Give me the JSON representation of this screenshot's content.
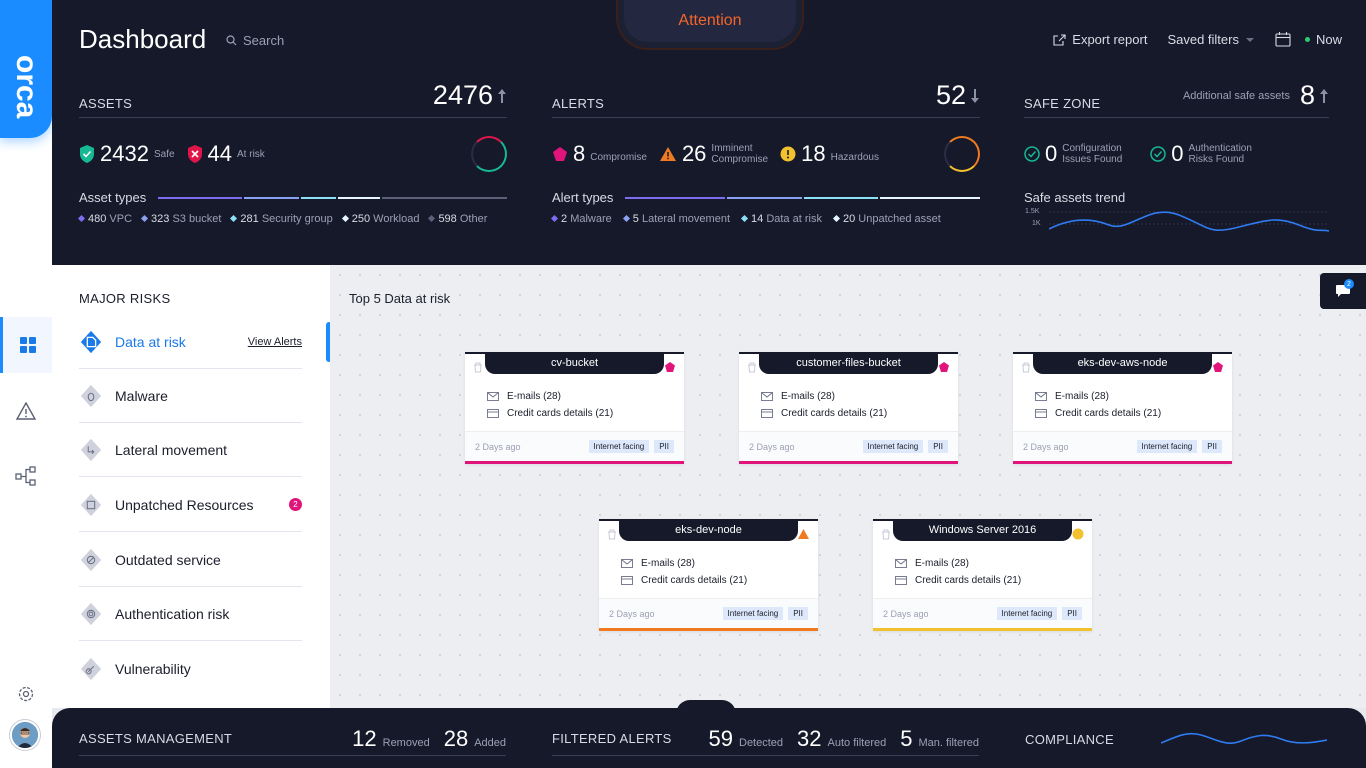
{
  "brand": {
    "logo_text": "orca",
    "accent": "#1a8cff"
  },
  "header": {
    "title": "Dashboard",
    "search_placeholder": "Search",
    "attention": "Attention",
    "export_report": "Export report",
    "saved_filters": "Saved filters",
    "time_label": "Now"
  },
  "assets": {
    "label": "ASSETS",
    "total": "2476",
    "safe_count": "2432",
    "safe_label": "Safe",
    "risk_count": "44",
    "risk_label": "At risk",
    "types_title": "Asset types",
    "types": [
      {
        "count": "480",
        "name": "VPC"
      },
      {
        "count": "323",
        "name": "S3 bucket"
      },
      {
        "count": "281",
        "name": "Security group"
      },
      {
        "count": "250",
        "name": "Workload"
      },
      {
        "count": "598",
        "name": "Other"
      }
    ]
  },
  "alerts": {
    "label": "ALERTS",
    "total": "52",
    "compromise_count": "8",
    "compromise_label": "Compromise",
    "imminent_count": "26",
    "imminent_label_1": "Imminent",
    "imminent_label_2": "Compromise",
    "hazardous_count": "18",
    "hazardous_label": "Hazardous",
    "types_title": "Alert types",
    "types": [
      {
        "count": "2",
        "name": "Malware"
      },
      {
        "count": "5",
        "name": "Lateral movement"
      },
      {
        "count": "14",
        "name": "Data at risk"
      },
      {
        "count": "20",
        "name": "Unpatched asset"
      }
    ]
  },
  "safe_zone": {
    "label": "SAFE ZONE",
    "additional_label": "Additional safe assets",
    "additional_count": "8",
    "config_count": "0",
    "config_label_1": "Configuration",
    "config_label_2": "Issues Found",
    "auth_count": "0",
    "auth_label_1": "Authentication",
    "auth_label_2": "Risks Found",
    "trend_title": "Safe assets trend",
    "trend_y_high": "1.5K",
    "trend_y_low": "1K"
  },
  "risks": {
    "title": "MAJOR RISKS",
    "view_alerts": "View Alerts",
    "items": [
      {
        "label": "Data at risk"
      },
      {
        "label": "Malware"
      },
      {
        "label": "Lateral movement"
      },
      {
        "label": "Unpatched Resources",
        "badge": "2"
      },
      {
        "label": "Outdated service"
      },
      {
        "label": "Authentication risk"
      },
      {
        "label": "Vulnerability"
      }
    ]
  },
  "main": {
    "title": "Top 5 Data at risk",
    "chat_badge": "2",
    "cards": [
      {
        "name": "cv-bucket",
        "row1": "E-mails (28)",
        "row2": "Credit cards details (21)",
        "time": "2 Days ago",
        "tag1": "Internet facing",
        "tag2": "PII",
        "severity": "compromise",
        "color": "#e0157c"
      },
      {
        "name": "customer-files-bucket",
        "row1": "E-mails (28)",
        "row2": "Credit cards details (21)",
        "time": "2 Days ago",
        "tag1": "Internet facing",
        "tag2": "PII",
        "severity": "compromise",
        "color": "#e0157c"
      },
      {
        "name": "eks-dev-aws-node",
        "row1": "E-mails (28)",
        "row2": "Credit cards details (21)",
        "time": "2 Days ago",
        "tag1": "Internet facing",
        "tag2": "PII",
        "severity": "compromise",
        "color": "#e0157c"
      },
      {
        "name": "eks-dev-node",
        "row1": "E-mails (28)",
        "row2": "Credit cards details (21)",
        "time": "2 Days ago",
        "tag1": "Internet facing",
        "tag2": "PII",
        "severity": "imminent",
        "color": "#f07a22"
      },
      {
        "name": "Windows Server 2016",
        "row1": "E-mails (28)",
        "row2": "Credit cards details (21)",
        "time": "2 Days ago",
        "tag1": "Internet facing",
        "tag2": "PII",
        "severity": "hazardous",
        "color": "#f2c12e"
      }
    ]
  },
  "footer": {
    "assets_mgmt": "ASSETS MANAGEMENT",
    "removed_count": "12",
    "removed_label": "Removed",
    "added_count": "28",
    "added_label": "Added",
    "filtered_alerts": "FILTERED ALERTS",
    "detected_count": "59",
    "detected_label": "Detected",
    "auto_count": "32",
    "auto_label": "Auto filtered",
    "man_count": "5",
    "man_label": "Man. filtered",
    "compliance": "COMPLIANCE"
  }
}
